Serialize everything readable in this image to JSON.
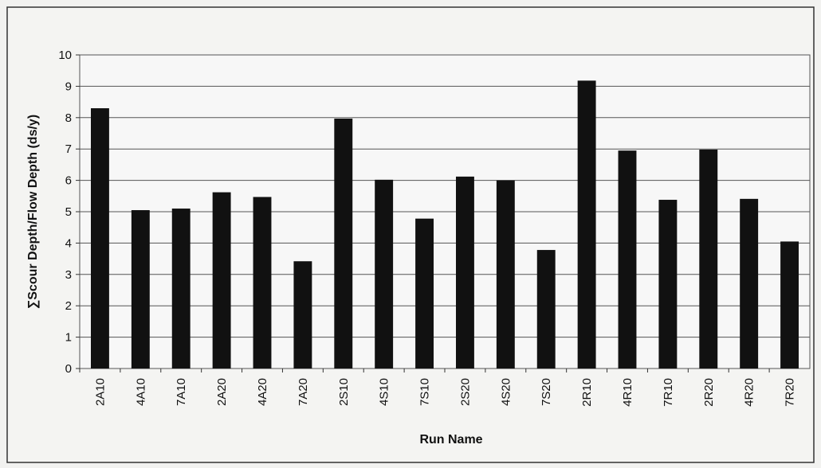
{
  "chart_data": {
    "type": "bar",
    "title": "",
    "xlabel": "Run Name",
    "ylabel": "∑Scour Depth/Flow Depth (ds/y)",
    "ylim": [
      0,
      10
    ],
    "yticks": [
      0,
      1,
      2,
      3,
      4,
      5,
      6,
      7,
      8,
      9,
      10
    ],
    "grid": true,
    "legend": "none",
    "bar_color": "#111111",
    "categories": [
      "2A10",
      "4A10",
      "7A10",
      "2A20",
      "4A20",
      "7A20",
      "2S10",
      "4S10",
      "7S10",
      "2S20",
      "4S20",
      "7S20",
      "2R10",
      "4R10",
      "7R10",
      "2R20",
      "4R20",
      "7R20"
    ],
    "values": [
      8.3,
      5.05,
      5.1,
      5.62,
      5.47,
      3.42,
      7.97,
      6.02,
      4.78,
      6.12,
      6.0,
      3.78,
      9.18,
      6.95,
      5.38,
      6.98,
      5.41,
      4.05
    ]
  }
}
